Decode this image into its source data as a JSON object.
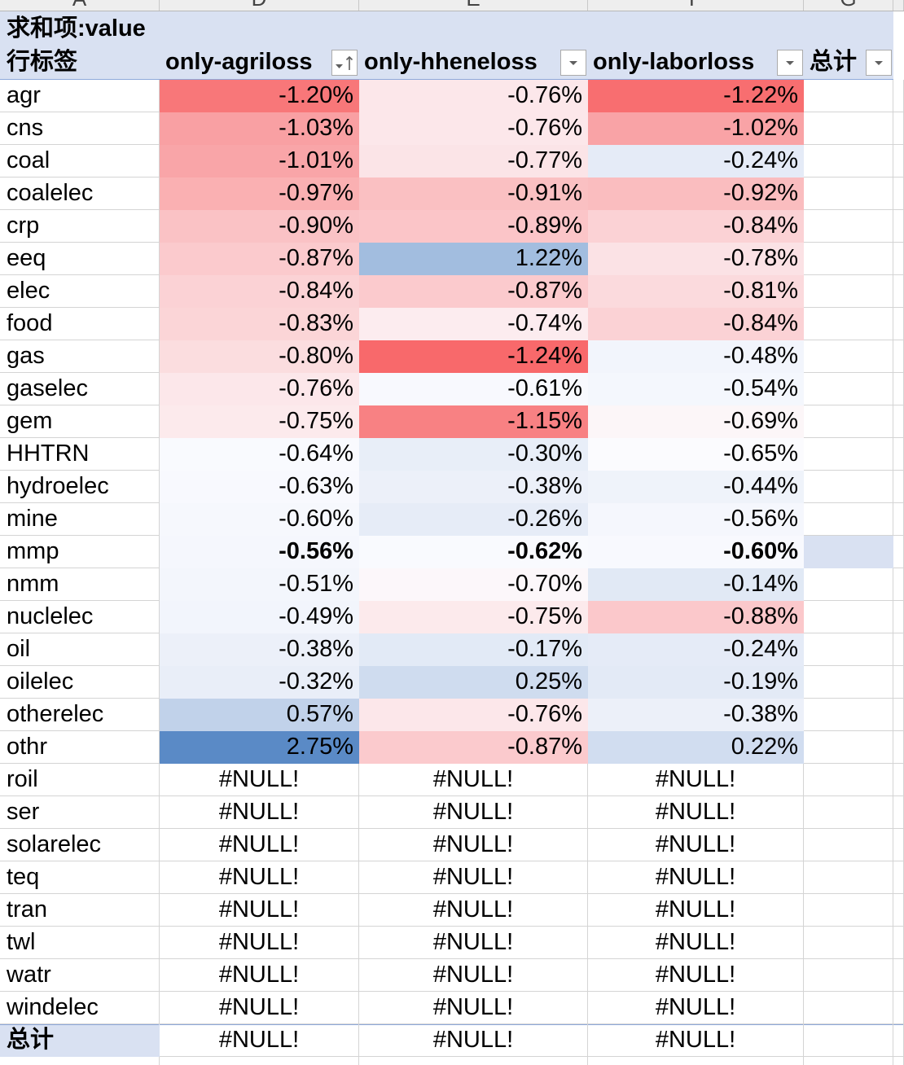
{
  "column_letters": [
    "A",
    "D",
    "E",
    "F",
    "G"
  ],
  "colors": {
    "header_fill": "#d9e1f2",
    "header_border": "#8ea9db",
    "gridline": "#d4d4d4",
    "scale_min_red": "#f8696b",
    "scale_mid_white": "#fcfcff",
    "scale_max_blue": "#5a8ac6"
  },
  "pivot": {
    "value_field_label": "求和项:value",
    "row_labels_header": "行标签",
    "columns": [
      {
        "label": "only-agriloss",
        "button_icon": "sort-ascending-filter-icon"
      },
      {
        "label": "only-hheneloss",
        "button_icon": "dropdown-arrow-icon"
      },
      {
        "label": "only-laborloss",
        "button_icon": "dropdown-arrow-icon"
      },
      {
        "label": "总计",
        "button_icon": "dropdown-arrow-icon"
      }
    ],
    "rows": [
      {
        "label": "agr",
        "values": [
          {
            "text": "-1.20%",
            "fill": "#f87779"
          },
          {
            "text": "-0.76%",
            "fill": "#fce7ea"
          },
          {
            "text": "-1.22%",
            "fill": "#f86e70"
          }
        ]
      },
      {
        "label": "cns",
        "values": [
          {
            "text": "-1.03%",
            "fill": "#f9a0a3"
          },
          {
            "text": "-0.76%",
            "fill": "#fce7ea"
          },
          {
            "text": "-1.02%",
            "fill": "#f9a3a6"
          }
        ]
      },
      {
        "label": "coal",
        "values": [
          {
            "text": "-1.01%",
            "fill": "#f9a5a8"
          },
          {
            "text": "-0.77%",
            "fill": "#fbe4e7"
          },
          {
            "text": "-0.24%",
            "fill": "#e5ebf7"
          }
        ]
      },
      {
        "label": "coalelec",
        "values": [
          {
            "text": "-0.97%",
            "fill": "#fab0b2"
          },
          {
            "text": "-0.91%",
            "fill": "#fac0c2"
          },
          {
            "text": "-0.92%",
            "fill": "#fabdbf"
          }
        ]
      },
      {
        "label": "crp",
        "values": [
          {
            "text": "-0.90%",
            "fill": "#fac2c5"
          },
          {
            "text": "-0.89%",
            "fill": "#fbc5c8"
          },
          {
            "text": "-0.84%",
            "fill": "#fbd2d5"
          }
        ]
      },
      {
        "label": "eeq",
        "values": [
          {
            "text": "-0.87%",
            "fill": "#fbcacd"
          },
          {
            "text": "1.22%",
            "fill": "#a2bddf"
          },
          {
            "text": "-0.78%",
            "fill": "#fbe2e5"
          }
        ]
      },
      {
        "label": "elec",
        "values": [
          {
            "text": "-0.84%",
            "fill": "#fbd2d5"
          },
          {
            "text": "-0.87%",
            "fill": "#fbcacd"
          },
          {
            "text": "-0.81%",
            "fill": "#fbdadd"
          }
        ]
      },
      {
        "label": "food",
        "values": [
          {
            "text": "-0.83%",
            "fill": "#fbd5d7"
          },
          {
            "text": "-0.74%",
            "fill": "#fcecef"
          },
          {
            "text": "-0.84%",
            "fill": "#fbd2d5"
          }
        ]
      },
      {
        "label": "gas",
        "values": [
          {
            "text": "-0.80%",
            "fill": "#fbdddf"
          },
          {
            "text": "-1.24%",
            "fill": "#f8696b"
          },
          {
            "text": "-0.48%",
            "fill": "#f2f5fc"
          }
        ]
      },
      {
        "label": "gaselec",
        "values": [
          {
            "text": "-0.76%",
            "fill": "#fce7ea"
          },
          {
            "text": "-0.61%",
            "fill": "#f8f9fe"
          },
          {
            "text": "-0.54%",
            "fill": "#f4f7fd"
          }
        ]
      },
      {
        "label": "gem",
        "values": [
          {
            "text": "-0.75%",
            "fill": "#fceaec"
          },
          {
            "text": "-1.15%",
            "fill": "#f88183"
          },
          {
            "text": "-0.69%",
            "fill": "#fcf6f8"
          }
        ]
      },
      {
        "label": "HHTRN",
        "values": [
          {
            "text": "-0.64%",
            "fill": "#f9fafe"
          },
          {
            "text": "-0.30%",
            "fill": "#e8eef8"
          },
          {
            "text": "-0.65%",
            "fill": "#fbfbfe"
          }
        ]
      },
      {
        "label": "hydroelec",
        "values": [
          {
            "text": "-0.63%",
            "fill": "#f8f9fe"
          },
          {
            "text": "-0.38%",
            "fill": "#ecf0f9"
          },
          {
            "text": "-0.44%",
            "fill": "#eff3fa"
          }
        ]
      },
      {
        "label": "mine",
        "values": [
          {
            "text": "-0.60%",
            "fill": "#f6f8fd"
          },
          {
            "text": "-0.26%",
            "fill": "#e6ecf7"
          },
          {
            "text": "-0.56%",
            "fill": "#f5f7fd"
          }
        ]
      },
      {
        "label": "mmp",
        "bold": true,
        "total_cell_fill": "#d9e1f2",
        "values": [
          {
            "text": "-0.56%",
            "fill": "#f5f7fd"
          },
          {
            "text": "-0.62%",
            "fill": "#f9fafe"
          },
          {
            "text": "-0.60%",
            "fill": "#f8f9fe"
          }
        ]
      },
      {
        "label": "nmm",
        "values": [
          {
            "text": "-0.51%",
            "fill": "#f3f6fc"
          },
          {
            "text": "-0.70%",
            "fill": "#fcf7fa"
          },
          {
            "text": "-0.14%",
            "fill": "#e1e9f5"
          }
        ]
      },
      {
        "label": "nuclelec",
        "values": [
          {
            "text": "-0.49%",
            "fill": "#f2f5fc"
          },
          {
            "text": "-0.75%",
            "fill": "#fceaec"
          },
          {
            "text": "-0.88%",
            "fill": "#fbc8cb"
          }
        ]
      },
      {
        "label": "oil",
        "values": [
          {
            "text": "-0.38%",
            "fill": "#ecf0f9"
          },
          {
            "text": "-0.17%",
            "fill": "#e2eaf6"
          },
          {
            "text": "-0.24%",
            "fill": "#e5ebf7"
          }
        ]
      },
      {
        "label": "oilelec",
        "values": [
          {
            "text": "-0.32%",
            "fill": "#e9eef8"
          },
          {
            "text": "0.25%",
            "fill": "#cfdcef"
          },
          {
            "text": "-0.19%",
            "fill": "#e3eaf6"
          }
        ]
      },
      {
        "label": "otherelec",
        "values": [
          {
            "text": "0.57%",
            "fill": "#c1d2ea"
          },
          {
            "text": "-0.76%",
            "fill": "#fce7ea"
          },
          {
            "text": "-0.38%",
            "fill": "#ecf0f9"
          }
        ]
      },
      {
        "label": "othr",
        "values": [
          {
            "text": "2.75%",
            "fill": "#5a8ac6"
          },
          {
            "text": "-0.87%",
            "fill": "#fbcacd"
          },
          {
            "text": "0.22%",
            "fill": "#d1ddf0"
          }
        ]
      },
      {
        "label": "roil",
        "values": [
          {
            "text": "#NULL!"
          },
          {
            "text": "#NULL!"
          },
          {
            "text": "#NULL!"
          }
        ]
      },
      {
        "label": "ser",
        "values": [
          {
            "text": "#NULL!"
          },
          {
            "text": "#NULL!"
          },
          {
            "text": "#NULL!"
          }
        ]
      },
      {
        "label": "solarelec",
        "values": [
          {
            "text": "#NULL!"
          },
          {
            "text": "#NULL!"
          },
          {
            "text": "#NULL!"
          }
        ]
      },
      {
        "label": "teq",
        "values": [
          {
            "text": "#NULL!"
          },
          {
            "text": "#NULL!"
          },
          {
            "text": "#NULL!"
          }
        ]
      },
      {
        "label": "tran",
        "values": [
          {
            "text": "#NULL!"
          },
          {
            "text": "#NULL!"
          },
          {
            "text": "#NULL!"
          }
        ]
      },
      {
        "label": "twl",
        "values": [
          {
            "text": "#NULL!"
          },
          {
            "text": "#NULL!"
          },
          {
            "text": "#NULL!"
          }
        ]
      },
      {
        "label": "watr",
        "values": [
          {
            "text": "#NULL!"
          },
          {
            "text": "#NULL!"
          },
          {
            "text": "#NULL!"
          }
        ]
      },
      {
        "label": "windelec",
        "values": [
          {
            "text": "#NULL!"
          },
          {
            "text": "#NULL!"
          },
          {
            "text": "#NULL!"
          }
        ]
      }
    ],
    "grand_total": {
      "label": "总计",
      "values": [
        "#NULL!",
        "#NULL!",
        "#NULL!"
      ]
    }
  }
}
